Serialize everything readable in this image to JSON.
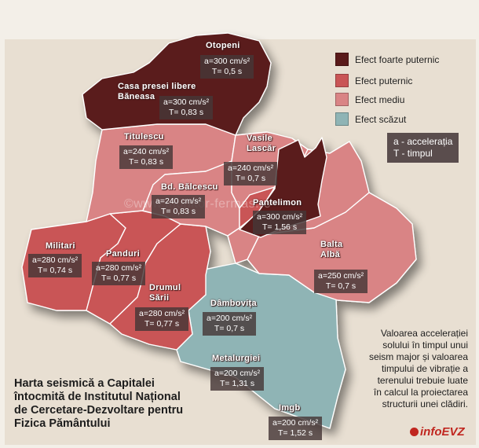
{
  "legend": {
    "items": [
      {
        "label": "Efect foarte puternic",
        "color": "#5a1a1a"
      },
      {
        "label": "Efect puternic",
        "color": "#c95556"
      },
      {
        "label": "Efect mediu",
        "color": "#d98485"
      },
      {
        "label": "Efect scăzut",
        "color": "#8fb4b5"
      }
    ],
    "key_line1": "a - accelerația",
    "key_line2": "T - timpul"
  },
  "zones": [
    {
      "name": "Otopeni",
      "a": "a=300 cm/s²",
      "t": "T= 0,5 s",
      "effect": "Efect foarte puternic"
    },
    {
      "name_line1": "Casa presei libere",
      "name_line2": "Băneasa",
      "a": "a=300 cm/s²",
      "t": "T= 0,83 s",
      "effect": "Efect foarte puternic"
    },
    {
      "name": "Titulescu",
      "a": "a=240 cm/s²",
      "t": "T= 0,83 s",
      "effect": "Efect mediu"
    },
    {
      "name_line1": "Vasile",
      "name_line2": "Lascăr",
      "a": "a=240 cm/s²",
      "t": "T= 0,7 s",
      "effect": "Efect mediu"
    },
    {
      "name": "Bd. Bălcescu",
      "a": "a=240 cm/s²",
      "t": "T= 0,83 s",
      "effect": "Efect mediu"
    },
    {
      "name": "Pantelimon",
      "a": "a=300 cm/s²",
      "t": "T= 1,56 s",
      "effect": "Efect foarte puternic"
    },
    {
      "name": "Militari",
      "a": "a=280 cm/s²",
      "t": "T= 0,74 s",
      "effect": "Efect puternic"
    },
    {
      "name": "Panduri",
      "a": "a=280 cm/s²",
      "t": "T= 0,77 s",
      "effect": "Efect puternic"
    },
    {
      "name_line1": "Drumul",
      "name_line2": "Sării",
      "a": "a=280 cm/s²",
      "t": "T= 0,77 s",
      "effect": "Efect puternic"
    },
    {
      "name_line1": "Balta",
      "name_line2": "Albă",
      "a": "a=250 cm/s²",
      "t": "T= 0,7 s",
      "effect": "Efect mediu"
    },
    {
      "name": "Dâmbovița",
      "a": "a=200 cm/s²",
      "t": "T= 0,7 s",
      "effect": "Efect scăzut"
    },
    {
      "name": "Metalurgiei",
      "a": "a=200 cm/s²",
      "t": "T= 1,31 s",
      "effect": "Efect scăzut"
    },
    {
      "name": "Imgb",
      "a": "a=200 cm/s²",
      "t": "T= 1,52 s",
      "effect": "Efect scăzut"
    }
  ],
  "title": {
    "line1": "Harta seismică a Capitalei",
    "line2": "întocmită de Institutul Național",
    "line3": "de Cercetare-Dezvoltare pentru",
    "line4": "Fizica Pământului"
  },
  "note": {
    "line1": "Valoarea accelerației",
    "line2": "solului în timpul unui",
    "line3": "seism major și valoarea",
    "line4": "timpului de vibrație a",
    "line5": "terenului trebuie luate",
    "line6": "în calcul la proiectarea",
    "line7": "structurii unei clădiri."
  },
  "watermark": "©www.monitor-fermas.ro",
  "logo": "infoEVZ"
}
